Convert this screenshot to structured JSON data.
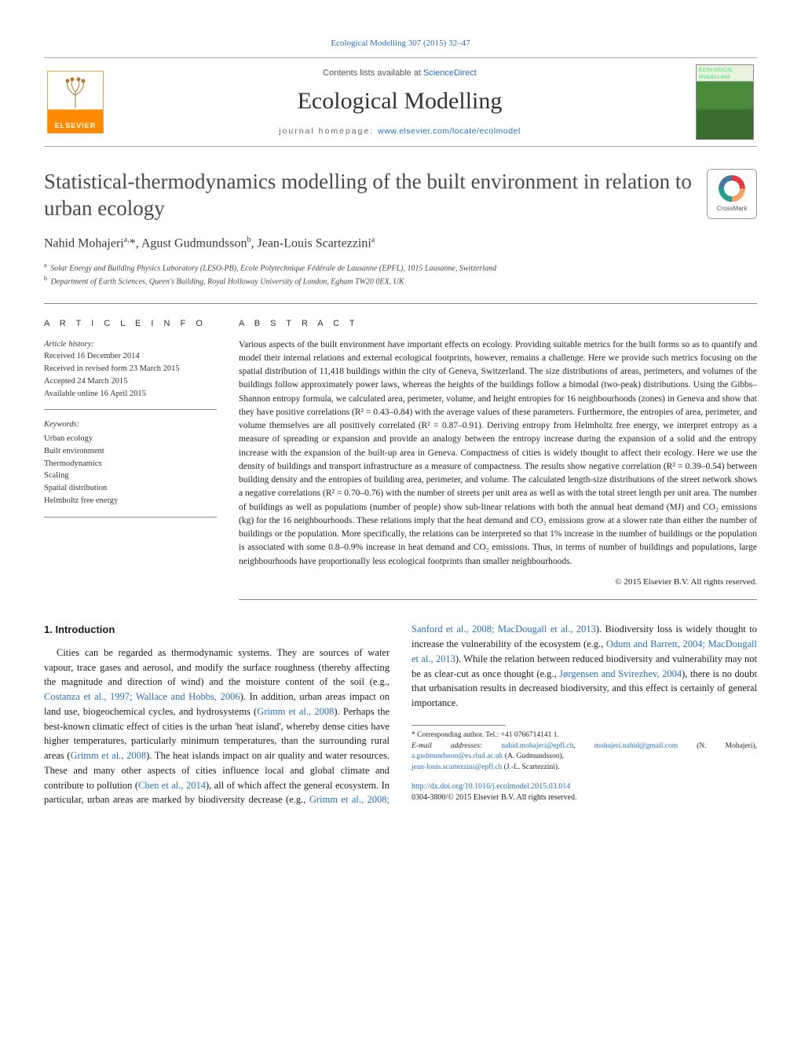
{
  "journal_ref": "Ecological Modelling 307 (2015) 32–47",
  "masthead": {
    "contents_prefix": "Contents lists available at ",
    "contents_link": "ScienceDirect",
    "journal_title": "Ecological Modelling",
    "homepage_prefix": "journal homepage: ",
    "homepage_url": "www.elsevier.com/locate/ecolmodel",
    "publisher_word": "ELSEVIER"
  },
  "crossmark_label": "CrossMark",
  "title": "Statistical-thermodynamics modelling of the built environment in relation to urban ecology",
  "authors_html": "Nahid Mohajeri<sup>a,</sup>*, Agust Gudmundsson<sup>b</sup>, Jean-Louis Scartezzini<sup>a</sup>",
  "affiliations": {
    "a": "Solar Energy and Building Physics Laboratory (LESO-PB), Ecole Polytechnique Fédérale de Lausanne (EPFL), 1015 Lausanne, Switzerland",
    "b": "Department of Earth Sciences, Queen's Building, Royal Holloway University of London, Egham TW20 0EX, UK"
  },
  "article_info_heading": "A R T I C L E   I N F O",
  "abstract_heading": "A B S T R A C T",
  "history": {
    "label": "Article history:",
    "received": "Received 16 December 2014",
    "revised": "Received in revised form 23 March 2015",
    "accepted": "Accepted 24 March 2015",
    "online": "Available online 16 April 2015"
  },
  "keywords": {
    "label": "Keywords:",
    "items": [
      "Urban ecology",
      "Built environment",
      "Thermodynamics",
      "Scaling",
      "Spatial distribution",
      "Helmholtz free energy"
    ]
  },
  "abstract": "Various aspects of the built environment have important effects on ecology. Providing suitable metrics for the built forms so as to quantify and model their internal relations and external ecological footprints, however, remains a challenge. Here we provide such metrics focusing on the spatial distribution of 11,418 buildings within the city of Geneva, Switzerland. The size distributions of areas, perimeters, and volumes of the buildings follow approximately power laws, whereas the heights of the buildings follow a bimodal (two-peak) distributions. Using the Gibbs–Shannon entropy formula, we calculated area, perimeter, volume, and height entropies for 16 neighbourhoods (zones) in Geneva and show that they have positive correlations (R² = 0.43–0.84) with the average values of these parameters. Furthermore, the entropies of area, perimeter, and volume themselves are all positively correlated (R² = 0.87–0.91). Deriving entropy from Helmholtz free energy, we interpret entropy as a measure of spreading or expansion and provide an analogy between the entropy increase during the expansion of a solid and the entropy increase with the expansion of the built-up area in Geneva. Compactness of cities is widely thought to affect their ecology. Here we use the density of buildings and transport infrastructure as a measure of compactness. The results show negative correlation (R² = 0.39–0.54) between building density and the entropies of building area, perimeter, and volume. The calculated length-size distributions of the street network shows a negative correlations (R² = 0.70–0.76) with the number of streets per unit area as well as with the total street length per unit area. The number of buildings as well as populations (number of people) show sub-linear relations with both the annual heat demand (MJ) and CO₂ emissions (kg) for the 16 neighbourhoods. These relations imply that the heat demand and CO₂ emissions grow at a slower rate than either the number of buildings or the population. More specifically, the relations can be interpreted so that 1% increase in the number of buildings or the population is associated with some 0.8–0.9% increase in heat demand and CO₂ emissions. Thus, in terms of number of buildings and populations, large neighbourhoods have proportionally less ecological footprints than smaller neighbourhoods.",
  "copyright": "© 2015 Elsevier B.V. All rights reserved.",
  "section1_heading": "1.  Introduction",
  "body_p1_a": "Cities can be regarded as thermodynamic systems. They are sources of water vapour, trace gases and aerosol, and modify the surface roughness (thereby affecting the magnitude and direction of wind) and the moisture content of the soil (e.g., ",
  "body_p1_cite1": "Costanza et al., 1997; Wallace and Hobbs, 2006",
  "body_p1_b": "). In addition, urban areas impact on land use, biogeochemical cycles, and hydrosystems (",
  "body_p1_cite2": "Grimm et al., 2008",
  "body_p1_c": "). Perhaps the best-known climatic effect of cities is the urban ",
  "body_p2_a": "'heat island', whereby dense cities have higher temperatures, particularly minimum temperatures, than the surrounding rural areas (",
  "body_p2_cite1": "Grimm et al., 2008",
  "body_p2_b": "). The heat islands impact on air quality and water resources. These and many other aspects of cities influence local and global climate and contribute to pollution (",
  "body_p2_cite2": "Chen et al., 2014",
  "body_p2_c": "), all of which affect the general ecosystem. In particular, urban areas are marked by biodiversity decrease (e.g., ",
  "body_p2_cite3": "Grimm et al., 2008; Sanford et al., 2008; MacDougall et al., 2013",
  "body_p2_d": "). Biodiversity loss is widely thought to increase the vulnerability of the ecosystem (e.g., ",
  "body_p2_cite4": "Odum and Barrett, 2004; MacDougall et al., 2013",
  "body_p2_e": "). While the relation between reduced biodiversity and vulnerability may not be as clear-cut as once thought (e.g., ",
  "body_p2_cite5": "Jørgensen and Svirezhev, 2004",
  "body_p2_f": "), there is no doubt that urbanisation results in decreased biodiversity, and this effect is certainly of general importance.",
  "footnotes": {
    "corresponding": "* Corresponding author. Tel.: +41 0766714141 1.",
    "email_label": "E-mail addresses:",
    "emails": [
      {
        "addr": "nahid.mohajeri@epfl.ch",
        "sep": ", "
      },
      {
        "addr": "mohajeri.nahid@gmail.com",
        "sep": ""
      }
    ],
    "name1": " (N. Mohajeri), ",
    "email2": "a.gudmundsson@es.rhul.ac.uk",
    "name2": " (A. Gudmundsson),",
    "email3": "jean-louis.scartezzini@epfl.ch",
    "name3": " (J.-L. Scartezzini)."
  },
  "doi": {
    "url": "http://dx.doi.org/10.1016/j.ecolmodel.2015.03.014",
    "issn_line": "0304-3800/© 2015 Elsevier B.V. All rights reserved."
  },
  "colors": {
    "link": "#2a6ebb",
    "elsevier_orange": "#ff8a00",
    "rule": "#888888"
  }
}
